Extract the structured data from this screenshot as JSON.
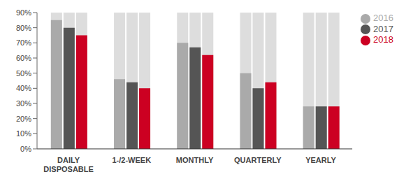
{
  "chart_data": {
    "type": "bar",
    "categories": [
      "DAILY\nDISPOSABLE",
      "1-/2-WEEK",
      "MONTHLY",
      "QUARTERLY",
      "YEARLY"
    ],
    "series": [
      {
        "name": "2016",
        "color": "#aaaaaa",
        "values": [
          85,
          46,
          70,
          50,
          28
        ]
      },
      {
        "name": "2017",
        "color": "#555555",
        "values": [
          80,
          44,
          67,
          40,
          28
        ]
      },
      {
        "name": "2018",
        "color": "#cc0022",
        "values": [
          75,
          40,
          62,
          44,
          28
        ]
      }
    ],
    "ylim": [
      0,
      90
    ],
    "yticks": [
      {
        "value": 0,
        "label": "0%"
      },
      {
        "value": 10,
        "label": "10%"
      },
      {
        "value": 20,
        "label": "20%"
      },
      {
        "value": 30,
        "label": "30%"
      },
      {
        "value": 40,
        "label": "40%"
      },
      {
        "value": 50,
        "label": "50%"
      },
      {
        "value": 60,
        "label": "60%"
      },
      {
        "value": 70,
        "label": "70%"
      },
      {
        "value": 80,
        "label": "80%"
      },
      {
        "value": 90,
        "label": "90%"
      }
    ],
    "grid": false,
    "legend": "upper right"
  }
}
